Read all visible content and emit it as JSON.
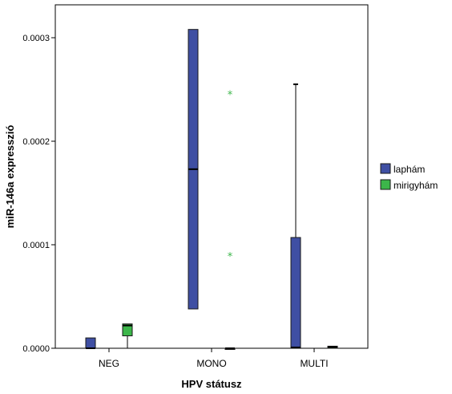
{
  "chart_data": {
    "type": "boxplot",
    "title": "",
    "xlabel": "HPV státusz",
    "ylabel": "miR-146a expresszió",
    "ylim": [
      0,
      0.00033
    ],
    "yticks": [
      0,
      0.0001,
      0.0002,
      0.0003
    ],
    "ytick_labels": [
      "0.0000",
      "0.0001",
      "0.0002",
      "0.0003"
    ],
    "categories": [
      "NEG",
      "MONO",
      "MULTI"
    ],
    "legend_position": "right",
    "series": [
      {
        "name": "lapham",
        "label": "laphám",
        "color": "#3f4fa3",
        "boxes": [
          {
            "category": "NEG",
            "min": 0,
            "q1": 0,
            "median": 0,
            "q3": 1e-05,
            "max": 1e-05,
            "outliers": []
          },
          {
            "category": "MONO",
            "min": 3.8e-05,
            "q1": 3.8e-05,
            "median": 0.000173,
            "q3": 0.000308,
            "max": 0.000308,
            "outliers": []
          },
          {
            "category": "MULTI",
            "min": 0,
            "q1": 5e-07,
            "median": 8e-07,
            "q3": 0.000107,
            "max": 0.000255,
            "outliers": []
          }
        ]
      },
      {
        "name": "mirigyham",
        "label": "mirigyhám",
        "color": "#3cb64a",
        "boxes": [
          {
            "category": "NEG",
            "min": 0,
            "q1": 1.2e-05,
            "median": 2.2e-05,
            "q3": 2.35e-05,
            "max": 2.35e-05,
            "outliers": []
          },
          {
            "category": "MONO",
            "min": 0,
            "q1": 0,
            "median": 0,
            "q3": 0,
            "max": 0,
            "outliers": [
              0.000246,
              9e-05
            ]
          },
          {
            "category": "MULTI",
            "min": 0,
            "q1": 0,
            "median": 1.2e-06,
            "q3": 2e-06,
            "max": 2e-06,
            "outliers": []
          }
        ]
      }
    ]
  }
}
